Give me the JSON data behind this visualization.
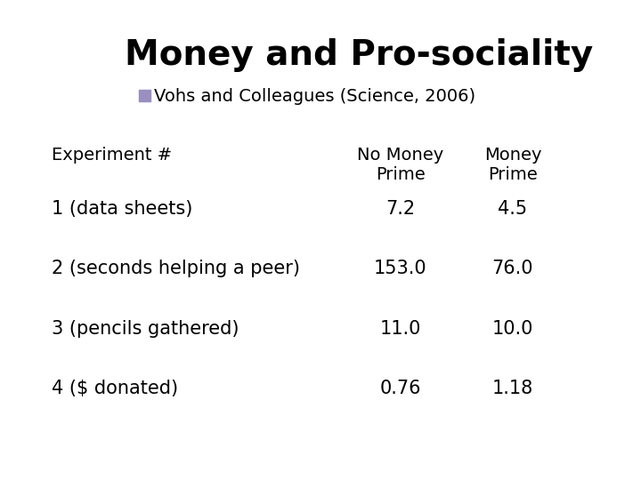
{
  "title": "Money and Pro-sociality",
  "subtitle": "Vohs and Colleagues (Science, 2006)",
  "subtitle_bullet_color": "#9b8fc0",
  "col_header_1": "No Money\nPrime",
  "col_header_2": "Money\nPrime",
  "row_label_col": "Experiment #",
  "rows": [
    {
      "label": "1 (data sheets)",
      "no_money": "7.2",
      "money": "4.5"
    },
    {
      "label": "2 (seconds helping a peer)",
      "no_money": "153.0",
      "money": "76.0"
    },
    {
      "label": "3 (pencils gathered)",
      "no_money": "11.0",
      "money": "10.0"
    },
    {
      "label": "4 ($ donated)",
      "no_money": "0.76",
      "money": "1.18"
    }
  ],
  "background_color": "#ffffff",
  "text_color": "#000000",
  "title_fontsize": 28,
  "subtitle_fontsize": 14,
  "header_fontsize": 14,
  "row_fontsize": 15,
  "fig_width": 7.2,
  "fig_height": 5.4,
  "dpi": 100
}
